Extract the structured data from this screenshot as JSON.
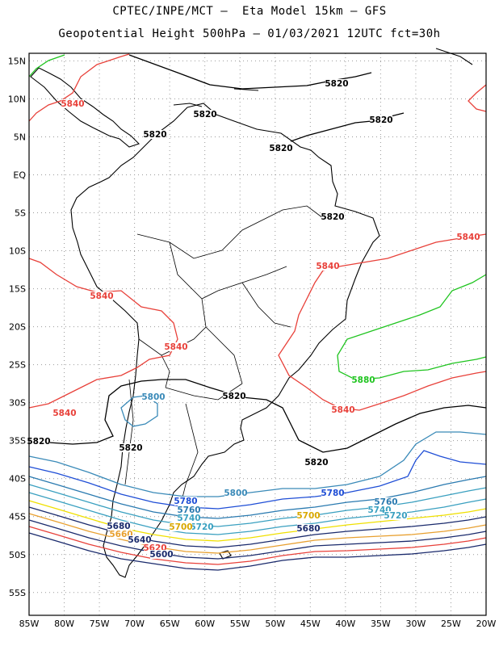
{
  "title": {
    "line1": "CPTEC/INPE/MCT –  Eta Model 15km – GFS",
    "line2": "Geopotential Height 500hPa – 01/03/2021 12UTC fct=30h"
  },
  "axes": {
    "lat_labels": [
      "15N",
      "10N",
      "5N",
      "EQ",
      "5S",
      "10S",
      "15S",
      "20S",
      "25S",
      "30S",
      "35S",
      "40S",
      "45S",
      "50S",
      "55S"
    ],
    "lon_labels": [
      "85W",
      "80W",
      "75W",
      "70W",
      "65W",
      "60W",
      "55W",
      "50W",
      "45W",
      "40W",
      "35W",
      "30W",
      "25W",
      "20W"
    ]
  },
  "map": {
    "projection": "lat-lon",
    "extent": {
      "lon_min": -85,
      "lon_max": -20,
      "lat_min": -58,
      "lat_max": 16
    },
    "grid": "dotted",
    "variable": "geopotential height 500hPa (m)"
  },
  "contour_labels": [
    {
      "text": "5840",
      "color": "#e8413a"
    },
    {
      "text": "5820",
      "color": "#000000"
    },
    {
      "text": "5820",
      "color": "#000000"
    },
    {
      "text": "5820",
      "color": "#000000"
    },
    {
      "text": "5820",
      "color": "#000000"
    },
    {
      "text": "5820",
      "color": "#000000"
    },
    {
      "text": "5820",
      "color": "#000000"
    },
    {
      "text": "5840",
      "color": "#e8413a"
    },
    {
      "text": "5840",
      "color": "#e8413a"
    },
    {
      "text": "5840",
      "color": "#e8413a"
    },
    {
      "text": "5840",
      "color": "#e8413a"
    },
    {
      "text": "5880",
      "color": "#1fc41f"
    },
    {
      "text": "5800",
      "color": "#3a8ab8"
    },
    {
      "text": "5820",
      "color": "#000000"
    },
    {
      "text": "5840",
      "color": "#e8413a"
    },
    {
      "text": "5840",
      "color": "#e8413a"
    },
    {
      "text": "5820",
      "color": "#000000"
    },
    {
      "text": "5820",
      "color": "#000000"
    },
    {
      "text": "5820",
      "color": "#000000"
    },
    {
      "text": "5800",
      "color": "#3a8ab8"
    },
    {
      "text": "5780",
      "color": "#1f4ed6"
    },
    {
      "text": "5760",
      "color": "#2a7ab0"
    },
    {
      "text": "5740",
      "color": "#3aa0c0"
    },
    {
      "text": "5720",
      "color": "#3aa0c0"
    },
    {
      "text": "5780",
      "color": "#1f4ed6"
    },
    {
      "text": "5760",
      "color": "#2a7ab0"
    },
    {
      "text": "5740",
      "color": "#3aa0c0"
    },
    {
      "text": "5720",
      "color": "#3aa0c0"
    },
    {
      "text": "5700",
      "color": "#d9a800"
    },
    {
      "text": "5700",
      "color": "#d9a800"
    },
    {
      "text": "5680",
      "color": "#1a2a6c"
    },
    {
      "text": "5660",
      "color": "#e8a030"
    },
    {
      "text": "5640",
      "color": "#1a2a6c"
    },
    {
      "text": "5620",
      "color": "#e8413a"
    },
    {
      "text": "5600",
      "color": "#1a2a6c"
    },
    {
      "text": "5680",
      "color": "#1a2a6c"
    }
  ]
}
